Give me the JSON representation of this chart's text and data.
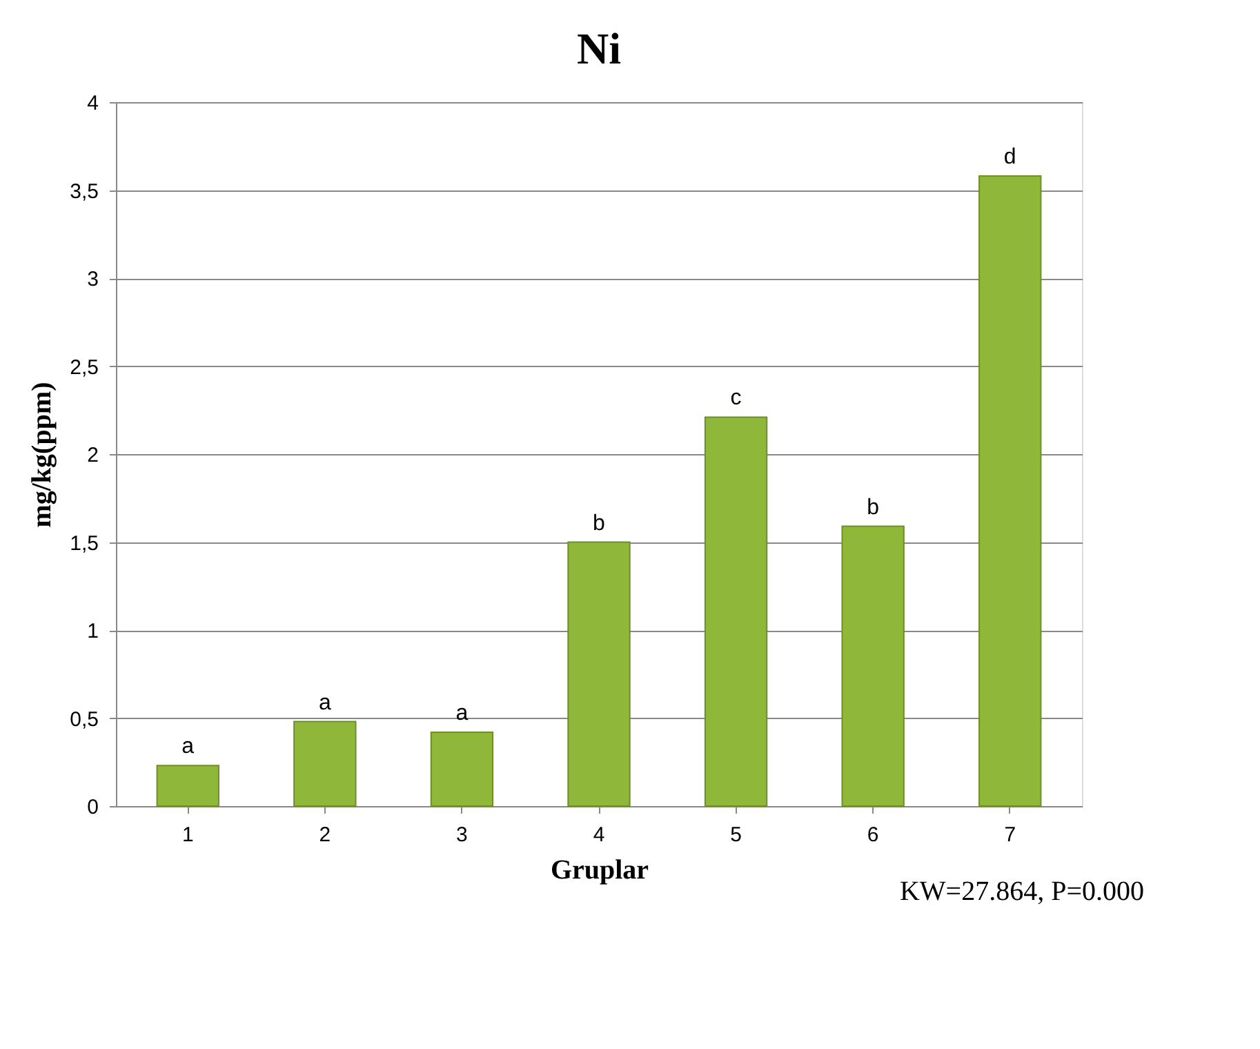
{
  "chart_data": {
    "type": "bar",
    "title": "Ni",
    "xlabel": "Gruplar",
    "ylabel": "mg/kg(ppm)",
    "categories": [
      "1",
      "2",
      "3",
      "4",
      "5",
      "6",
      "7"
    ],
    "values": [
      0.23,
      0.48,
      0.42,
      1.5,
      2.21,
      1.59,
      3.58
    ],
    "value_labels": [
      "a",
      "a",
      "a",
      "b",
      "c",
      "b",
      "d"
    ],
    "color": "#8fb83a",
    "ylim": [
      0,
      4
    ],
    "yticks": [
      0,
      {
        "value": 0.5,
        "label": "0,5"
      },
      1,
      {
        "value": 1.5,
        "label": "1,5"
      },
      2,
      {
        "value": 2.5,
        "label": "2,5"
      },
      3,
      {
        "value": 3.5,
        "label": "3,5"
      },
      4
    ],
    "grid": "y",
    "annotations": [
      "KW=27.864, P=0.000"
    ]
  }
}
